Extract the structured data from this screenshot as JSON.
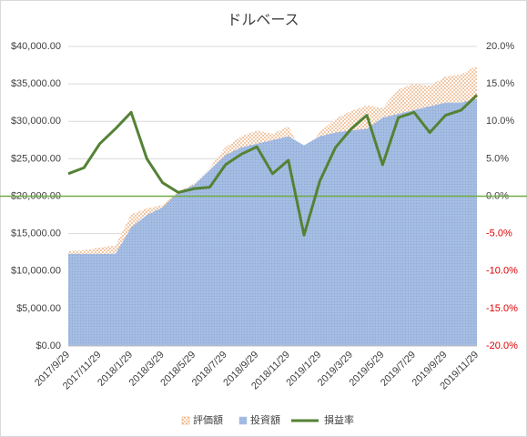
{
  "chart_data": {
    "type": "area_line",
    "title": "ドルベース",
    "categories": [
      "2017/9/29",
      null,
      "2017/11/29",
      null,
      "2018/1/29",
      null,
      "2018/3/29",
      null,
      "2018/5/29",
      null,
      "2018/7/29",
      null,
      "2018/9/29",
      null,
      "2018/11/29",
      null,
      "2019/1/29",
      null,
      "2019/3/29",
      null,
      "2019/5/29",
      null,
      "2019/7/29",
      null,
      "2019/9/29",
      null,
      "2019/11/29"
    ],
    "series": [
      {
        "name": "評価額",
        "color": "#e8a268",
        "kind": "area",
        "values": [
          12670,
          12770,
          13160,
          13410,
          17570,
          18380,
          18830,
          20600,
          21700,
          23780,
          26570,
          27980,
          28780,
          28330,
          29340,
          25400,
          28560,
          30350,
          31390,
          32130,
          31780,
          34250,
          35030,
          34720,
          36010,
          36240,
          37460
        ]
      },
      {
        "name": "投資額",
        "color": "#a5bde3",
        "kind": "area",
        "values": [
          12300,
          12300,
          12300,
          12300,
          15800,
          17500,
          18500,
          20500,
          21500,
          23500,
          25500,
          26500,
          27000,
          27500,
          28000,
          26800,
          28000,
          28500,
          28800,
          29000,
          30500,
          31000,
          31500,
          32000,
          32500,
          32500,
          33000
        ]
      },
      {
        "name": "損益率",
        "color": "#548235",
        "kind": "line",
        "axis": "y2",
        "values": [
          3.0,
          3.8,
          7.0,
          9.0,
          11.2,
          5.0,
          1.8,
          0.5,
          1.0,
          1.2,
          4.2,
          5.6,
          6.6,
          3.0,
          4.8,
          -5.2,
          2.0,
          6.5,
          9.0,
          10.8,
          4.2,
          10.5,
          11.2,
          8.5,
          10.8,
          11.5,
          13.5
        ]
      }
    ],
    "ylim": [
      0,
      40000
    ],
    "yticks": [
      {
        "value": 0,
        "label": "$0.00"
      },
      {
        "value": 5000,
        "label": "$5,000.00"
      },
      {
        "value": 10000,
        "label": "$10,000.00"
      },
      {
        "value": 15000,
        "label": "$15,000.00"
      },
      {
        "value": 20000,
        "label": "$20,000.00"
      },
      {
        "value": 25000,
        "label": "$25,000.00"
      },
      {
        "value": 30000,
        "label": "$30,000.00"
      },
      {
        "value": 35000,
        "label": "$35,000.00"
      },
      {
        "value": 40000,
        "label": "$40,000.00"
      }
    ],
    "y2lim": [
      -20,
      20
    ],
    "y2ticks": [
      {
        "value": -20,
        "label": "-20.0%"
      },
      {
        "value": -15,
        "label": "-15.0%"
      },
      {
        "value": -10,
        "label": "-10.0%"
      },
      {
        "value": -5,
        "label": "-5.0%"
      },
      {
        "value": 0,
        "label": "0.0%"
      },
      {
        "value": 5,
        "label": "5.0%"
      },
      {
        "value": 10,
        "label": "10.0%"
      },
      {
        "value": 15,
        "label": "15.0%"
      },
      {
        "value": 20,
        "label": "20.0%"
      }
    ],
    "legend": "bottom"
  }
}
